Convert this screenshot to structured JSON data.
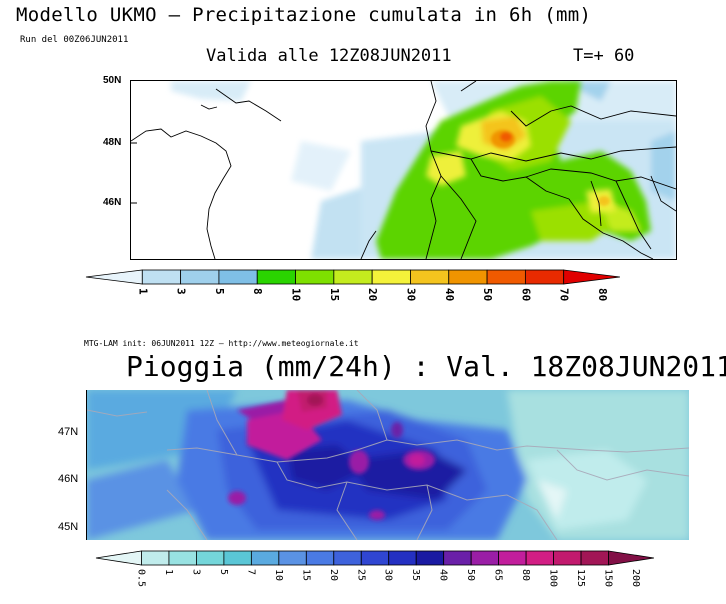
{
  "top_panel": {
    "title": "Modello UKMO – Precipitazione cumulata in 6h (mm)",
    "run": "Run del 00Z06JUN2011",
    "valid": "Valida alle 12Z08JUN2011",
    "step": "T=+ 60",
    "lat_labels": [
      "50N",
      "48N",
      "46N"
    ],
    "colorbar": {
      "labels": [
        "1",
        "3",
        "5",
        "8",
        "10",
        "15",
        "20",
        "30",
        "40",
        "50",
        "60",
        "70",
        "80"
      ],
      "colors": [
        "#e8f4fb",
        "#bfe0f2",
        "#9fd0ec",
        "#7fbfe6",
        "#2ad400",
        "#7ee000",
        "#c4ec1e",
        "#f4f23a",
        "#f4c41e",
        "#f09400",
        "#f05a00",
        "#e82a00",
        "#e00000"
      ]
    }
  },
  "bottom_panel": {
    "source": "MTG-LAM init: 06JUN2011 12Z – http://www.meteogiornale.it",
    "title": "Pioggia (mm/24h) : Val. 18Z08JUN2011",
    "lat_labels": [
      "47N",
      "46N",
      "45N"
    ],
    "colorbar": {
      "labels": [
        "0.5",
        "1",
        "3",
        "5",
        "7",
        "10",
        "15",
        "20",
        "25",
        "30",
        "35",
        "40",
        "50",
        "65",
        "80",
        "100",
        "125",
        "150",
        "200"
      ],
      "colors": [
        "#e4f6f6",
        "#c0ecec",
        "#98e2e2",
        "#74d6da",
        "#5ac6d6",
        "#5aaae0",
        "#5a92e4",
        "#4a7ae4",
        "#3e62dc",
        "#3046d2",
        "#2430c2",
        "#1a1aa2",
        "#6a20a8",
        "#9a1ea6",
        "#c21e9c",
        "#d21e84",
        "#c21a6e",
        "#a21656",
        "#821046"
      ]
    }
  }
}
